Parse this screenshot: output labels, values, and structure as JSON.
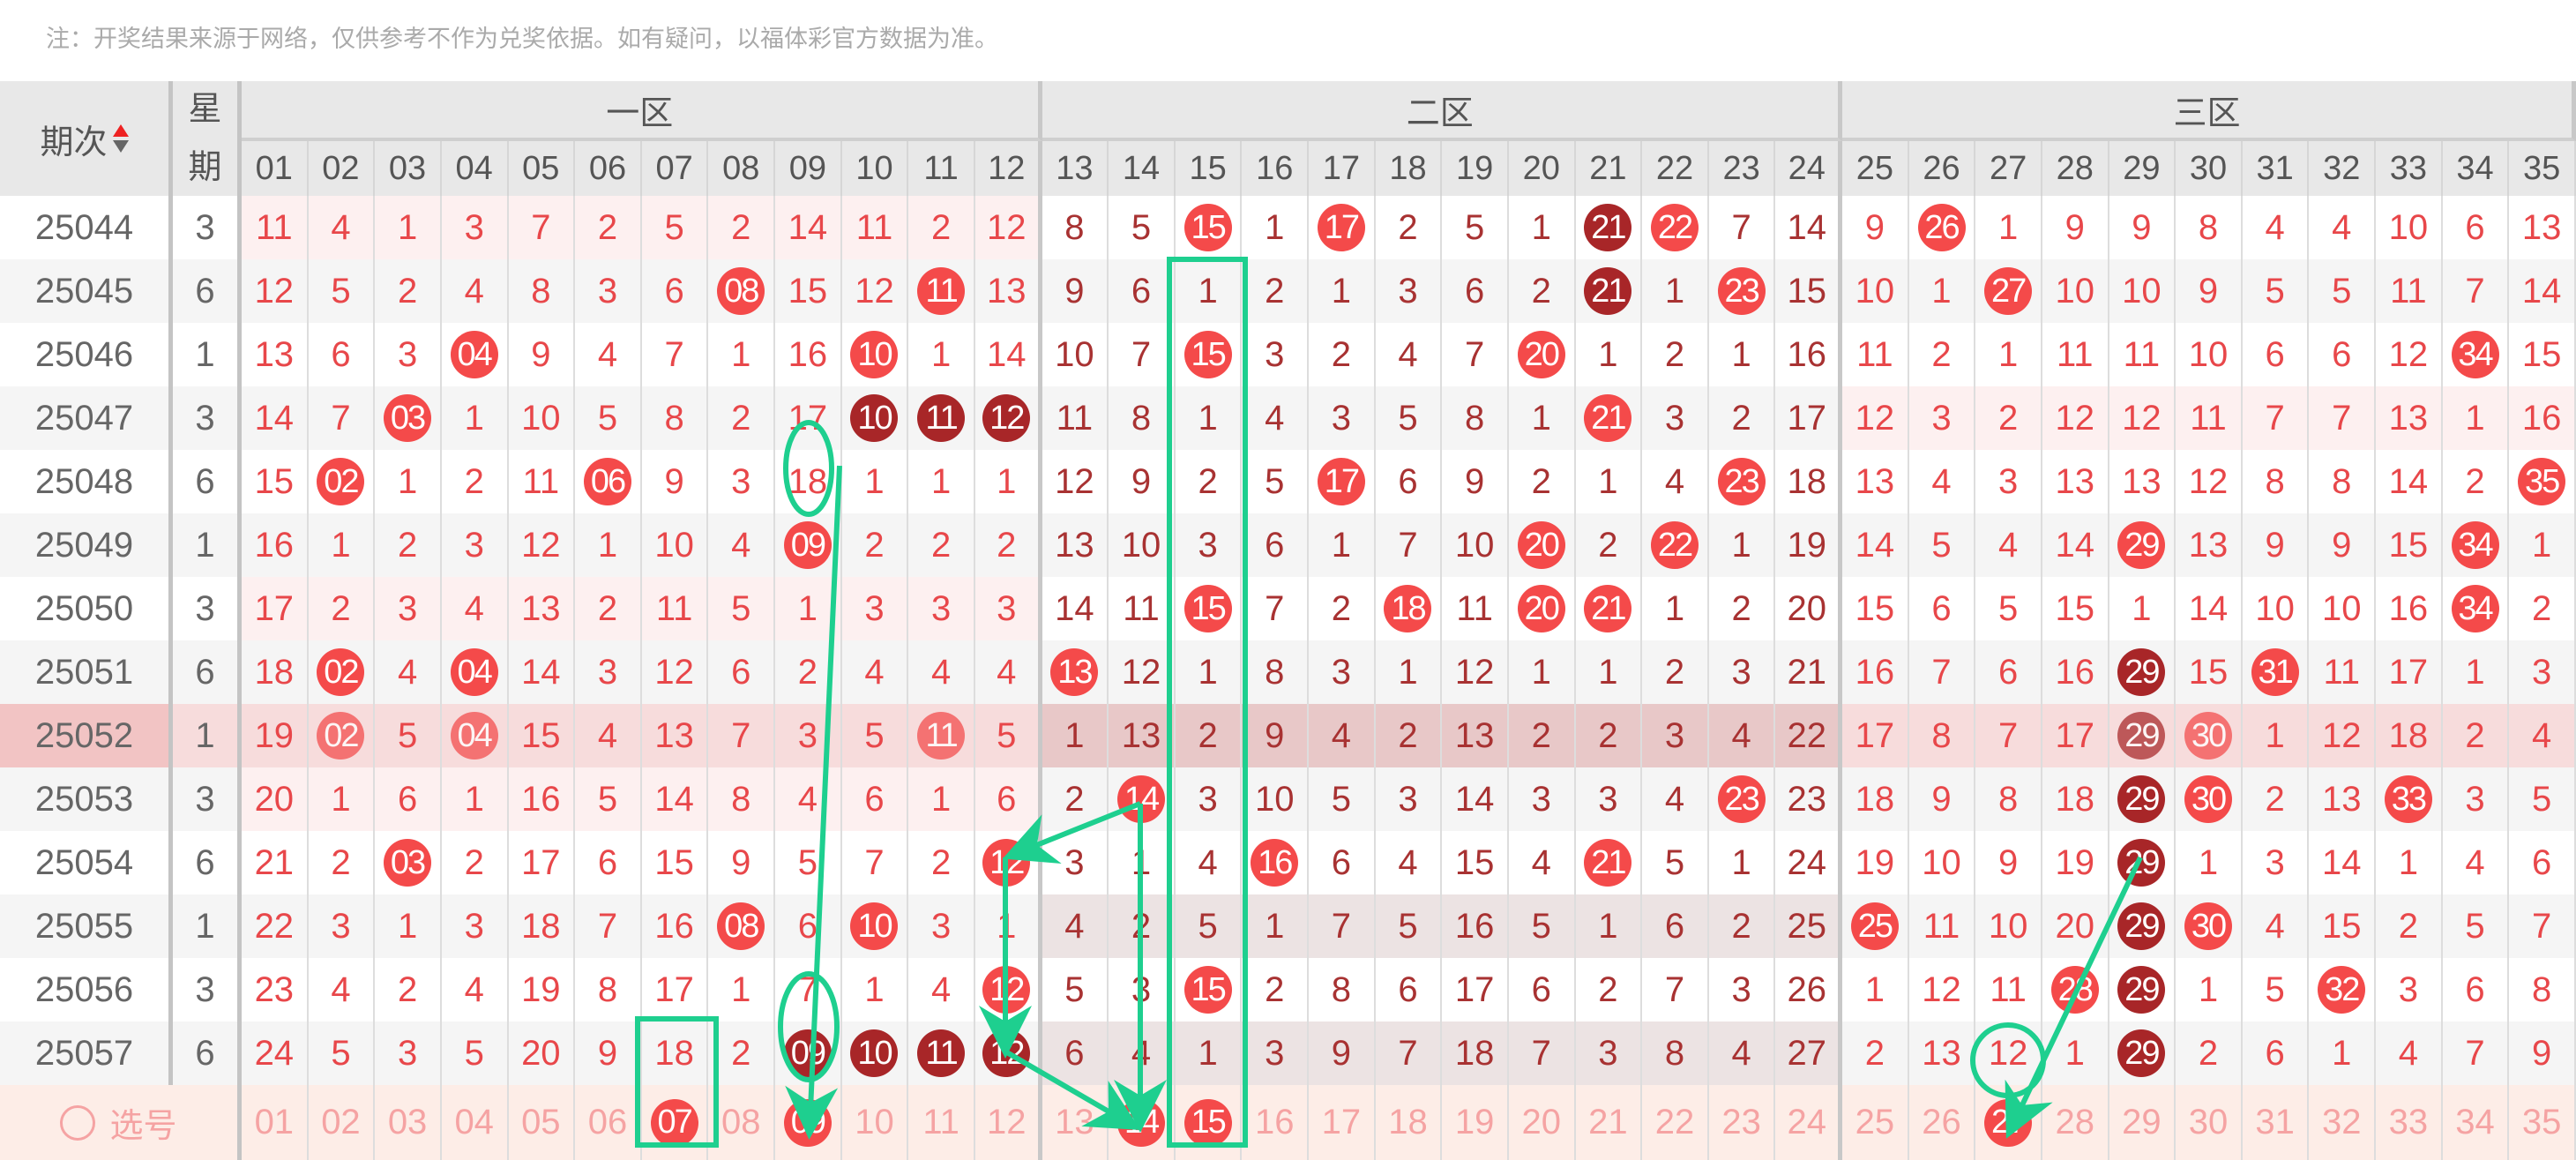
{
  "note": "注：开奖结果来源于网络，仅供参考不作为兑奖依据。如有疑问，以福体彩官方数据为准。",
  "header": {
    "period_label": "期次",
    "weekday_label_1": "星",
    "weekday_label_2": "期",
    "zones": [
      "一区",
      "二区",
      "三区"
    ],
    "numbers": [
      "01",
      "02",
      "03",
      "04",
      "05",
      "06",
      "07",
      "08",
      "09",
      "10",
      "11",
      "12",
      "13",
      "14",
      "15",
      "16",
      "17",
      "18",
      "19",
      "20",
      "21",
      "22",
      "23",
      "24",
      "25",
      "26",
      "27",
      "28",
      "29",
      "30",
      "31",
      "32",
      "33",
      "34",
      "35"
    ]
  },
  "colors": {
    "ball": "#f44a4a",
    "ball_repeat": "#a82628",
    "zone_text": "#e8474a",
    "zone2_text": "#a83232",
    "annotation": "#1ecf8f"
  },
  "rows": [
    {
      "period": "25044",
      "weekday": "3",
      "values": [
        "11",
        "4",
        "1",
        "3",
        "7",
        "2",
        "5",
        "2",
        "14",
        "11",
        "2",
        "12",
        "8",
        "5",
        "15",
        "1",
        "17",
        "2",
        "5",
        "1",
        "21",
        "22",
        "7",
        "14",
        "9",
        "26",
        "1",
        "9",
        "9",
        "8",
        "4",
        "4",
        "10",
        "6",
        "13"
      ],
      "hits": [
        15,
        17,
        22,
        26
      ],
      "repeat_hits": [
        21
      ]
    },
    {
      "period": "25045",
      "weekday": "6",
      "values": [
        "12",
        "5",
        "2",
        "4",
        "8",
        "3",
        "6",
        "08",
        "15",
        "12",
        "11",
        "13",
        "9",
        "6",
        "1",
        "2",
        "1",
        "3",
        "6",
        "2",
        "21",
        "1",
        "23",
        "15",
        "10",
        "1",
        "27",
        "10",
        "10",
        "9",
        "5",
        "5",
        "11",
        "7",
        "14"
      ],
      "hits": [
        8,
        11,
        23,
        27
      ],
      "repeat_hits": [
        21
      ]
    },
    {
      "period": "25046",
      "weekday": "1",
      "values": [
        "13",
        "6",
        "3",
        "04",
        "9",
        "4",
        "7",
        "1",
        "16",
        "10",
        "1",
        "14",
        "10",
        "7",
        "15",
        "3",
        "2",
        "4",
        "7",
        "20",
        "1",
        "2",
        "1",
        "16",
        "11",
        "2",
        "1",
        "11",
        "11",
        "10",
        "6",
        "6",
        "12",
        "34",
        "15"
      ],
      "hits": [
        4,
        10,
        15,
        20,
        34
      ],
      "repeat_hits": []
    },
    {
      "period": "25047",
      "weekday": "3",
      "values": [
        "14",
        "7",
        "03",
        "1",
        "10",
        "5",
        "8",
        "2",
        "17",
        "10",
        "11",
        "12",
        "11",
        "8",
        "1",
        "4",
        "3",
        "5",
        "8",
        "1",
        "21",
        "3",
        "2",
        "17",
        "12",
        "3",
        "2",
        "12",
        "12",
        "11",
        "7",
        "7",
        "13",
        "1",
        "16"
      ],
      "hits": [
        3,
        21
      ],
      "repeat_hits": [
        10,
        11,
        12
      ]
    },
    {
      "period": "25048",
      "weekday": "6",
      "values": [
        "15",
        "02",
        "1",
        "2",
        "11",
        "06",
        "9",
        "3",
        "18",
        "1",
        "1",
        "1",
        "12",
        "9",
        "2",
        "5",
        "17",
        "6",
        "9",
        "2",
        "1",
        "4",
        "23",
        "18",
        "13",
        "4",
        "3",
        "13",
        "13",
        "12",
        "8",
        "8",
        "14",
        "2",
        "35"
      ],
      "hits": [
        2,
        6,
        17,
        23,
        35
      ],
      "repeat_hits": []
    },
    {
      "period": "25049",
      "weekday": "1",
      "values": [
        "16",
        "1",
        "2",
        "3",
        "12",
        "1",
        "10",
        "4",
        "09",
        "2",
        "2",
        "2",
        "13",
        "10",
        "3",
        "6",
        "1",
        "7",
        "10",
        "20",
        "2",
        "22",
        "1",
        "19",
        "14",
        "5",
        "4",
        "14",
        "29",
        "13",
        "9",
        "9",
        "15",
        "34",
        "1"
      ],
      "hits": [
        9,
        20,
        22,
        29,
        34
      ],
      "repeat_hits": []
    },
    {
      "period": "25050",
      "weekday": "3",
      "values": [
        "17",
        "2",
        "3",
        "4",
        "13",
        "2",
        "11",
        "5",
        "1",
        "3",
        "3",
        "3",
        "14",
        "11",
        "15",
        "7",
        "2",
        "18",
        "11",
        "20",
        "21",
        "1",
        "2",
        "20",
        "15",
        "6",
        "5",
        "15",
        "1",
        "14",
        "10",
        "10",
        "16",
        "34",
        "2"
      ],
      "hits": [
        15,
        18,
        20,
        21,
        34
      ],
      "repeat_hits": []
    },
    {
      "period": "25051",
      "weekday": "6",
      "values": [
        "18",
        "02",
        "4",
        "04",
        "14",
        "3",
        "12",
        "6",
        "2",
        "4",
        "4",
        "4",
        "13",
        "12",
        "1",
        "8",
        "3",
        "1",
        "12",
        "1",
        "1",
        "2",
        "3",
        "21",
        "16",
        "7",
        "6",
        "16",
        "29",
        "15",
        "31",
        "11",
        "17",
        "1",
        "3"
      ],
      "hits": [
        2,
        4,
        13,
        31
      ],
      "repeat_hits": [
        29
      ]
    },
    {
      "period": "25052",
      "weekday": "1",
      "values": [
        "19",
        "02",
        "5",
        "04",
        "15",
        "4",
        "13",
        "7",
        "3",
        "5",
        "11",
        "5",
        "1",
        "13",
        "2",
        "9",
        "4",
        "2",
        "13",
        "2",
        "2",
        "3",
        "4",
        "22",
        "17",
        "8",
        "7",
        "17",
        "29",
        "30",
        "1",
        "12",
        "18",
        "2",
        "4"
      ],
      "hits": [
        2,
        4,
        11,
        30
      ],
      "repeat_hits": [
        29
      ]
    },
    {
      "period": "25053",
      "weekday": "3",
      "values": [
        "20",
        "1",
        "6",
        "1",
        "16",
        "5",
        "14",
        "8",
        "4",
        "6",
        "1",
        "6",
        "2",
        "14",
        "3",
        "10",
        "5",
        "3",
        "14",
        "3",
        "3",
        "4",
        "23",
        "23",
        "18",
        "9",
        "8",
        "18",
        "29",
        "30",
        "2",
        "13",
        "33",
        "3",
        "5"
      ],
      "hits": [
        14,
        23,
        30,
        33
      ],
      "repeat_hits": [
        29
      ]
    },
    {
      "period": "25054",
      "weekday": "6",
      "values": [
        "21",
        "2",
        "03",
        "2",
        "17",
        "6",
        "15",
        "9",
        "5",
        "7",
        "2",
        "12",
        "3",
        "1",
        "4",
        "16",
        "6",
        "4",
        "15",
        "4",
        "21",
        "5",
        "1",
        "24",
        "19",
        "10",
        "9",
        "19",
        "29",
        "1",
        "3",
        "14",
        "1",
        "4",
        "6"
      ],
      "hits": [
        3,
        12,
        16,
        21
      ],
      "repeat_hits": [
        29
      ]
    },
    {
      "period": "25055",
      "weekday": "1",
      "values": [
        "22",
        "3",
        "1",
        "3",
        "18",
        "7",
        "16",
        "08",
        "6",
        "10",
        "3",
        "1",
        "4",
        "2",
        "5",
        "1",
        "7",
        "5",
        "16",
        "5",
        "1",
        "6",
        "2",
        "25",
        "25",
        "11",
        "10",
        "20",
        "29",
        "30",
        "4",
        "15",
        "2",
        "5",
        "7"
      ],
      "hits": [
        8,
        10,
        25,
        30
      ],
      "repeat_hits": [
        29
      ]
    },
    {
      "period": "25056",
      "weekday": "3",
      "values": [
        "23",
        "4",
        "2",
        "4",
        "19",
        "8",
        "17",
        "1",
        "7",
        "1",
        "4",
        "12",
        "5",
        "3",
        "15",
        "2",
        "8",
        "6",
        "17",
        "6",
        "2",
        "7",
        "3",
        "26",
        "1",
        "12",
        "11",
        "28",
        "29",
        "1",
        "5",
        "32",
        "3",
        "6",
        "8"
      ],
      "hits": [
        12,
        15,
        28,
        32
      ],
      "repeat_hits": [
        29
      ]
    },
    {
      "period": "25057",
      "weekday": "6",
      "values": [
        "24",
        "5",
        "3",
        "5",
        "20",
        "9",
        "18",
        "2",
        "09",
        "10",
        "11",
        "12",
        "6",
        "4",
        "1",
        "3",
        "9",
        "7",
        "18",
        "7",
        "3",
        "8",
        "4",
        "27",
        "2",
        "13",
        "12",
        "1",
        "29",
        "2",
        "6",
        "1",
        "4",
        "7",
        "9"
      ],
      "hits": [],
      "repeat_hits": [
        9,
        10,
        11,
        12,
        29
      ]
    }
  ],
  "pick_row": {
    "label": "选号",
    "selected": [
      7,
      9,
      14,
      15,
      27
    ]
  }
}
